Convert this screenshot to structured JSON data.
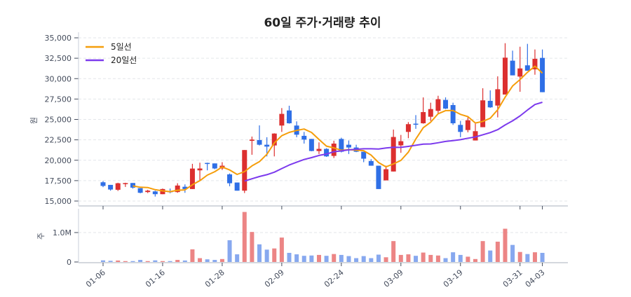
{
  "chart_data": [
    {
      "type": "candlestick",
      "title": "60일 주가·거래량 추이",
      "ylabel": "원",
      "ylim": [
        15000,
        35000
      ],
      "yticks": [
        "15,000",
        "17,500",
        "20,000",
        "22,500",
        "25,000",
        "27,500",
        "30,000",
        "32,500",
        "35,000"
      ],
      "xticks": [
        {
          "index": 0,
          "label": "01-06"
        },
        {
          "index": 8,
          "label": "01-16"
        },
        {
          "index": 16,
          "label": "01-28"
        },
        {
          "index": 24,
          "label": "02-09"
        },
        {
          "index": 32,
          "label": "02-24"
        },
        {
          "index": 40,
          "label": "03-09"
        },
        {
          "index": 48,
          "label": "03-19"
        },
        {
          "index": 56,
          "label": "03-31"
        },
        {
          "index": 59,
          "label": "04-03"
        }
      ],
      "grid": true,
      "legend_position": "top-left",
      "ohlc": [
        [
          17300,
          17450,
          16700,
          16850
        ],
        [
          16980,
          16980,
          16270,
          16410
        ],
        [
          16380,
          17240,
          16240,
          17180
        ],
        [
          17150,
          17240,
          16730,
          17200
        ],
        [
          17210,
          17210,
          16520,
          16640
        ],
        [
          16580,
          16580,
          15950,
          16010
        ],
        [
          16100,
          16380,
          15980,
          16270
        ],
        [
          16180,
          16270,
          15550,
          15840
        ],
        [
          15840,
          16530,
          15840,
          16470
        ],
        [
          16200,
          16530,
          15950,
          16150
        ],
        [
          16100,
          17180,
          16010,
          16900
        ],
        [
          16750,
          17040,
          16010,
          16470
        ],
        [
          16470,
          19560,
          16470,
          18980
        ],
        [
          18760,
          19700,
          17560,
          18990
        ],
        [
          19670,
          19700,
          18760,
          19560
        ],
        [
          19610,
          19610,
          18900,
          18990
        ],
        [
          18990,
          19760,
          18810,
          19330
        ],
        [
          18270,
          18380,
          16810,
          17180
        ],
        [
          17270,
          17270,
          16270,
          16270
        ],
        [
          16270,
          21250,
          15980,
          21250
        ],
        [
          22380,
          22900,
          20670,
          22530
        ],
        [
          22470,
          24270,
          21810,
          21900
        ],
        [
          21900,
          22820,
          20470,
          21670
        ],
        [
          21810,
          23300,
          20470,
          23270
        ],
        [
          24250,
          26390,
          23470,
          25680
        ],
        [
          26100,
          26680,
          24480,
          24530
        ],
        [
          24250,
          24760,
          22820,
          23130
        ],
        [
          22990,
          23470,
          22040,
          22530
        ],
        [
          22610,
          22610,
          21100,
          21130
        ],
        [
          21130,
          22190,
          20760,
          21390
        ],
        [
          21390,
          21470,
          20410,
          20470
        ],
        [
          20530,
          22390,
          20270,
          22040
        ],
        [
          22610,
          22760,
          20960,
          21040
        ],
        [
          21900,
          22420,
          20760,
          21560
        ],
        [
          21560,
          21900,
          20990,
          21040
        ],
        [
          21040,
          21040,
          19760,
          20190
        ],
        [
          19900,
          20130,
          19330,
          19330
        ],
        [
          19330,
          19330,
          16470,
          16470
        ],
        [
          17530,
          19330,
          17530,
          18900
        ],
        [
          18620,
          23760,
          18620,
          22850
        ],
        [
          21820,
          23100,
          20910,
          22330
        ],
        [
          23470,
          24670,
          22700,
          24420
        ],
        [
          24480,
          25530,
          23850,
          24420
        ],
        [
          24530,
          27700,
          24480,
          25900
        ],
        [
          25330,
          27050,
          24820,
          26270
        ],
        [
          26050,
          27900,
          25760,
          27480
        ],
        [
          27390,
          27700,
          26270,
          26330
        ],
        [
          26760,
          27050,
          24330,
          24530
        ],
        [
          24330,
          24820,
          22820,
          23470
        ],
        [
          23700,
          25250,
          23420,
          24900
        ],
        [
          22420,
          24480,
          22420,
          23560
        ],
        [
          24050,
          28820,
          24050,
          27340
        ],
        [
          27280,
          28560,
          26420,
          26480
        ],
        [
          26700,
          30280,
          25250,
          28700
        ],
        [
          28050,
          34340,
          28050,
          32570
        ],
        [
          32200,
          33430,
          30400,
          30400
        ],
        [
          30250,
          33910,
          28390,
          31250
        ],
        [
          31630,
          34260,
          30970,
          30970
        ],
        [
          31140,
          33570,
          30480,
          32430
        ],
        [
          32540,
          33570,
          28340,
          28340
        ]
      ],
      "series": [
        {
          "name": "5일선",
          "window": 5,
          "color": "#f59e0b"
        },
        {
          "name": "20일선",
          "window": 20,
          "color": "#7c3aed"
        }
      ],
      "colors": {
        "up": "#dc2f2f",
        "down": "#2f6fe6",
        "up_volume": "#ec8585",
        "down_volume": "#87a8ef"
      }
    },
    {
      "type": "bar",
      "ylabel": "주",
      "ylim": [
        0,
        1800000
      ],
      "yticks": [
        {
          "value": 0,
          "label": "0"
        },
        {
          "value": 1000000,
          "label": "1.0M"
        }
      ],
      "values": [
        55000,
        40000,
        50000,
        30000,
        30000,
        70000,
        30000,
        55000,
        30000,
        30000,
        70000,
        50000,
        430000,
        130000,
        90000,
        70000,
        100000,
        740000,
        260000,
        1700000,
        1020000,
        600000,
        420000,
        460000,
        830000,
        310000,
        260000,
        210000,
        220000,
        240000,
        210000,
        270000,
        240000,
        200000,
        130000,
        200000,
        130000,
        250000,
        160000,
        710000,
        240000,
        260000,
        210000,
        320000,
        240000,
        220000,
        130000,
        330000,
        240000,
        180000,
        100000,
        710000,
        390000,
        690000,
        1130000,
        580000,
        340000,
        270000,
        330000,
        310000
      ]
    }
  ]
}
